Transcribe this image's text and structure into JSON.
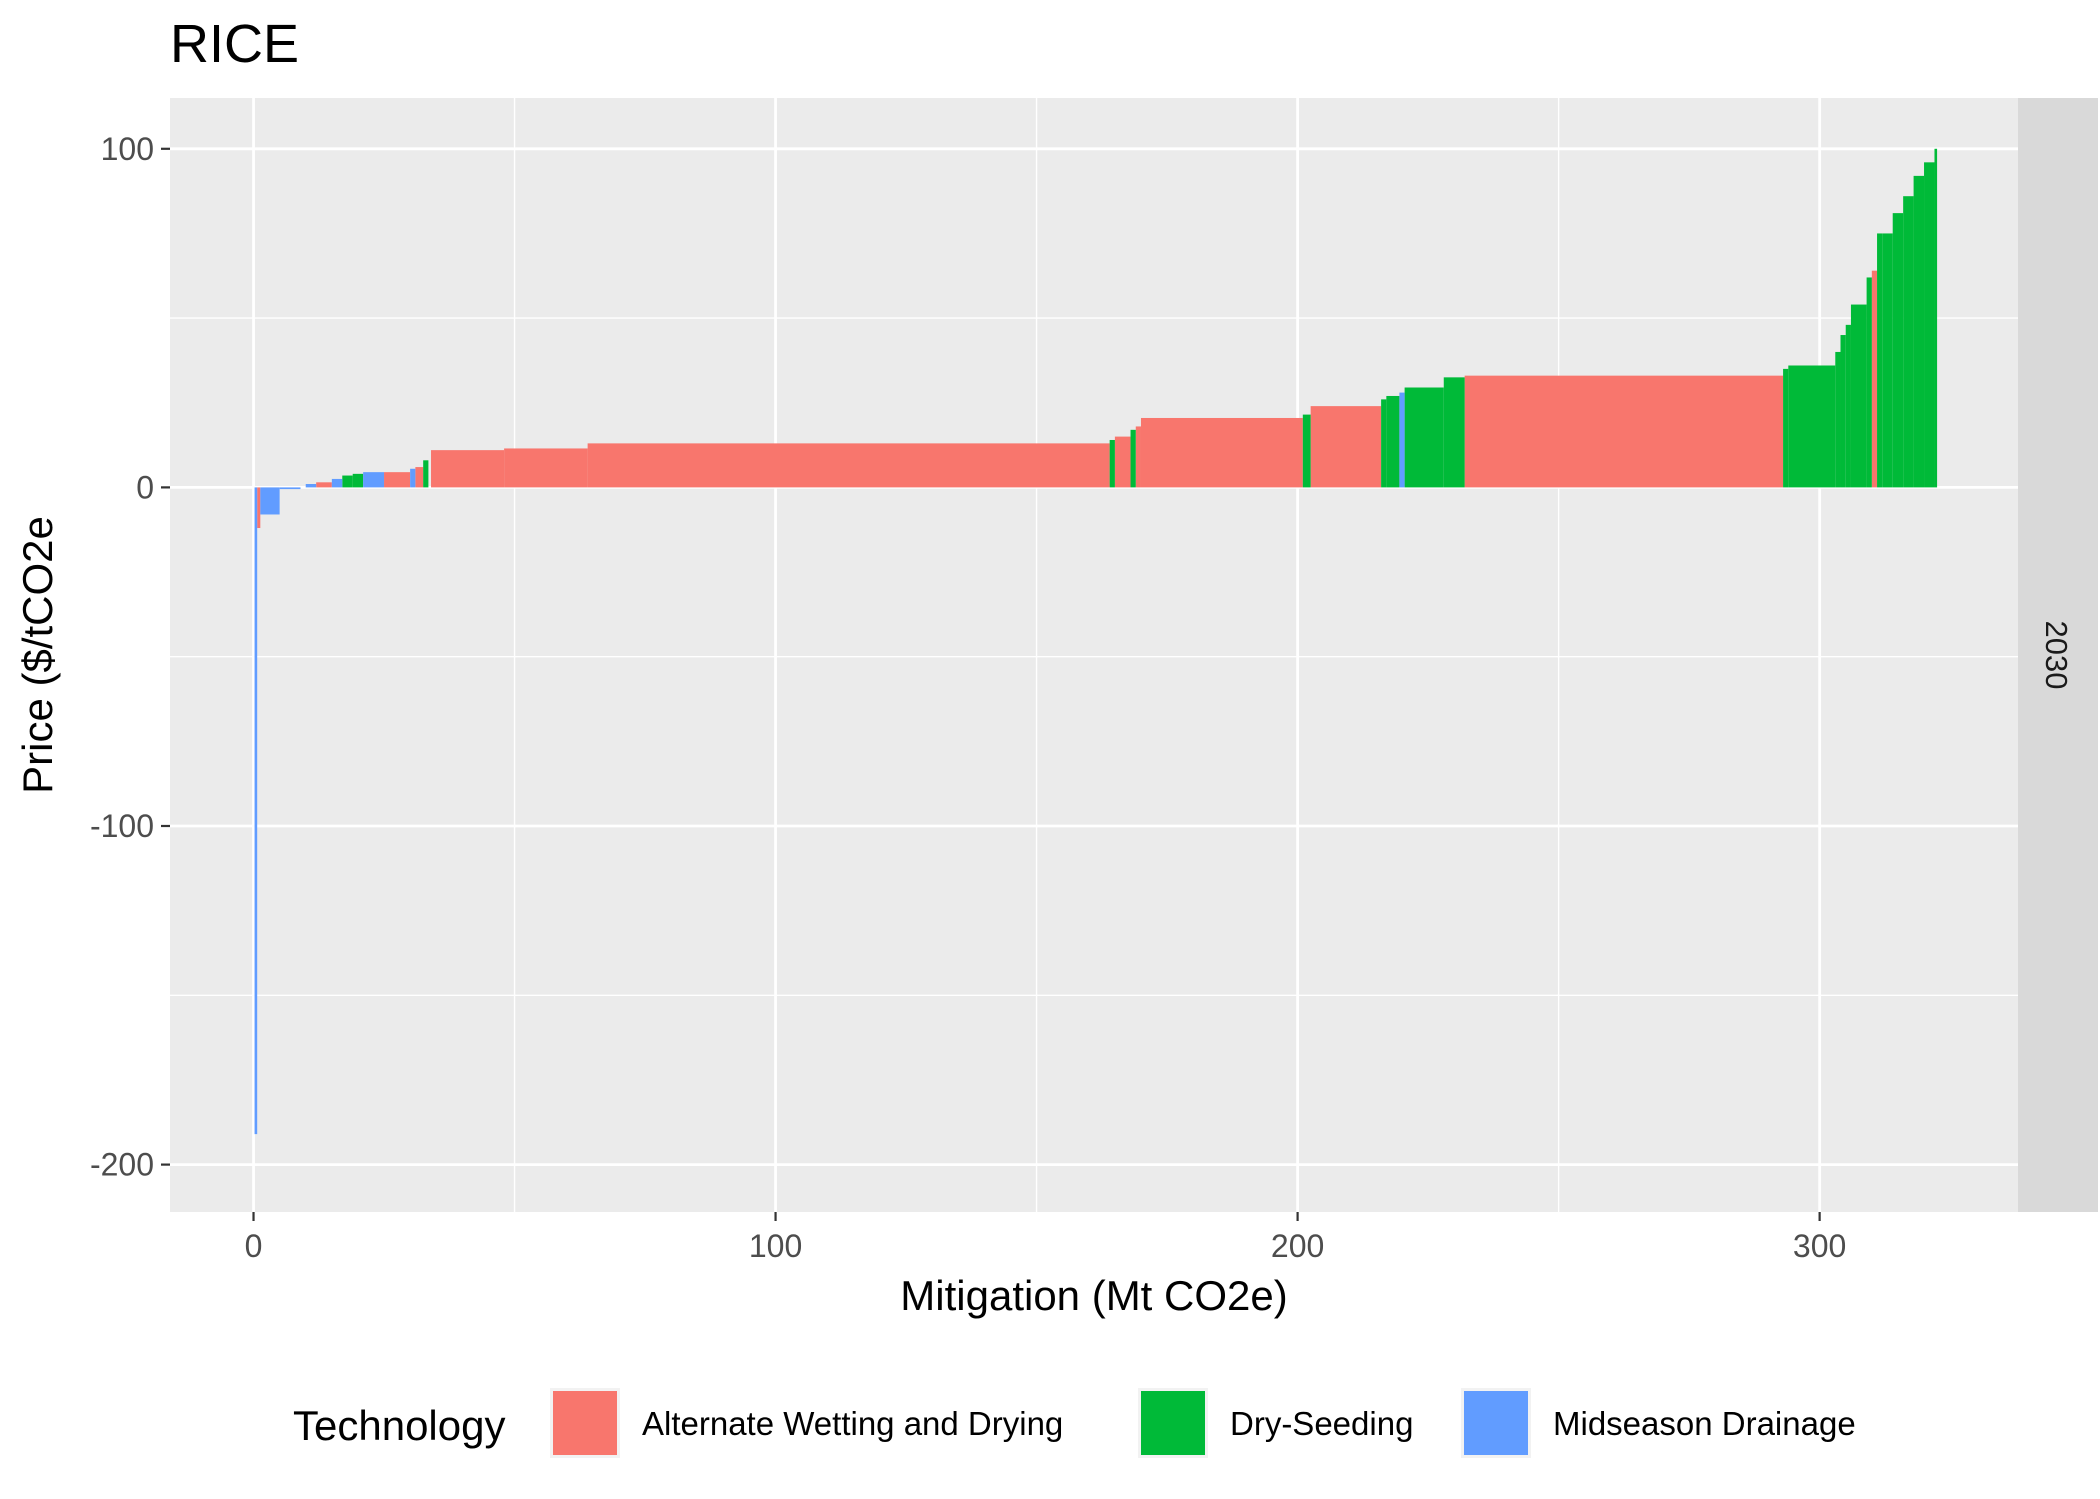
{
  "chart_data": {
    "type": "bar",
    "title": "RICE",
    "xlabel": "Mitigation (Mt CO2e)",
    "ylabel": "Price ($/tCO2e",
    "xlim": [
      -16,
      338
    ],
    "ylim": [
      -214,
      115
    ],
    "x_ticks": [
      0,
      100,
      200,
      300
    ],
    "y_ticks": [
      -200,
      -100,
      0,
      100
    ],
    "facet_label": "2030",
    "grid": true,
    "legend": {
      "title": "Technology",
      "position": "bottom",
      "entries": [
        {
          "name": "Alternate Wetting and Drying",
          "color": "#F8766D"
        },
        {
          "name": "Dry-Seeding",
          "color": "#00BA38"
        },
        {
          "name": "Midseason Drainage",
          "color": "#619CFF"
        }
      ]
    },
    "series": [
      {
        "name": "Alternate Wetting and Drying",
        "color": "#F8766D",
        "steps": [
          {
            "x0": 0.7,
            "x1": 1.3,
            "y": -12
          },
          {
            "x0": 12,
            "x1": 15,
            "y": 1.5
          },
          {
            "x0": 25,
            "x1": 30,
            "y": 4.5
          },
          {
            "x0": 31,
            "x1": 32.5,
            "y": 6
          },
          {
            "x0": 34,
            "x1": 48,
            "y": 11
          },
          {
            "x0": 48,
            "x1": 64,
            "y": 11.5
          },
          {
            "x0": 64,
            "x1": 164,
            "y": 13
          },
          {
            "x0": 165,
            "x1": 168,
            "y": 15
          },
          {
            "x0": 169,
            "x1": 170,
            "y": 18
          },
          {
            "x0": 170,
            "x1": 201,
            "y": 20.5
          },
          {
            "x0": 202.5,
            "x1": 216,
            "y": 24
          },
          {
            "x0": 232,
            "x1": 293,
            "y": 33
          },
          {
            "x0": 310,
            "x1": 311,
            "y": 64
          }
        ]
      },
      {
        "name": "Dry-Seeding",
        "color": "#00BA38",
        "steps": [
          {
            "x0": 17,
            "x1": 19,
            "y": 3.5
          },
          {
            "x0": 19,
            "x1": 21,
            "y": 4
          },
          {
            "x0": 32.5,
            "x1": 33.5,
            "y": 8
          },
          {
            "x0": 164,
            "x1": 165,
            "y": 14
          },
          {
            "x0": 168,
            "x1": 169,
            "y": 17
          },
          {
            "x0": 201,
            "x1": 202.5,
            "y": 21.5
          },
          {
            "x0": 216,
            "x1": 217,
            "y": 26
          },
          {
            "x0": 217,
            "x1": 219.5,
            "y": 27
          },
          {
            "x0": 220.5,
            "x1": 228,
            "y": 29.5
          },
          {
            "x0": 228,
            "x1": 232,
            "y": 32.5
          },
          {
            "x0": 293,
            "x1": 294,
            "y": 35
          },
          {
            "x0": 294,
            "x1": 303,
            "y": 36
          },
          {
            "x0": 303,
            "x1": 304,
            "y": 40
          },
          {
            "x0": 304,
            "x1": 305,
            "y": 45
          },
          {
            "x0": 305,
            "x1": 306,
            "y": 48
          },
          {
            "x0": 306,
            "x1": 309,
            "y": 54
          },
          {
            "x0": 309,
            "x1": 310,
            "y": 62
          },
          {
            "x0": 311,
            "x1": 312,
            "y": 75
          },
          {
            "x0": 312,
            "x1": 314,
            "y": 75
          },
          {
            "x0": 314,
            "x1": 316,
            "y": 81
          },
          {
            "x0": 316,
            "x1": 318,
            "y": 86
          },
          {
            "x0": 318,
            "x1": 320,
            "y": 92
          },
          {
            "x0": 320,
            "x1": 322,
            "y": 96
          },
          {
            "x0": 322,
            "x1": 322.5,
            "y": 100
          }
        ]
      },
      {
        "name": "Midseason Drainage",
        "color": "#619CFF",
        "steps": [
          {
            "x0": 0.2,
            "x1": 0.7,
            "y": -191
          },
          {
            "x0": 1.3,
            "x1": 5,
            "y": -8
          },
          {
            "x0": 5,
            "x1": 9,
            "y": -0.5
          },
          {
            "x0": 10,
            "x1": 12,
            "y": 1
          },
          {
            "x0": 15,
            "x1": 17,
            "y": 2.5
          },
          {
            "x0": 21,
            "x1": 25,
            "y": 4.5
          },
          {
            "x0": 30,
            "x1": 31,
            "y": 5.5
          },
          {
            "x0": 219.5,
            "x1": 220.5,
            "y": 28
          }
        ]
      }
    ]
  }
}
